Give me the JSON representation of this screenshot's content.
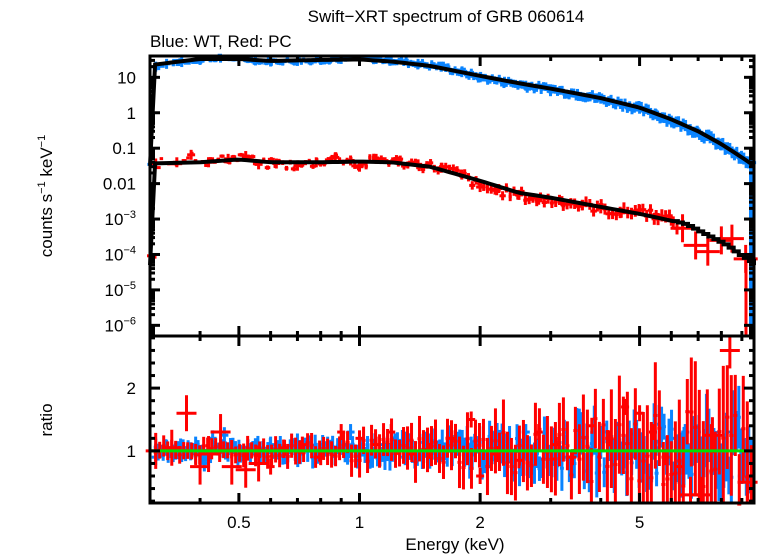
{
  "chart_data": [
    {
      "panel": "spectrum",
      "type": "scatter",
      "title": "Swift−XRT spectrum of GRB 060614",
      "subtitle": "Blue: WT, Red: PC",
      "xlabel": "Energy (keV)",
      "ylabel": "counts s⁻¹ keV⁻¹",
      "xscale": "log",
      "yscale": "log",
      "xlim": [
        0.3,
        9.65
      ],
      "ylim": [
        5e-07,
        40
      ],
      "x_ticks": [
        {
          "value": 0.5,
          "label": "0.5"
        },
        {
          "value": 1,
          "label": "1"
        },
        {
          "value": 2,
          "label": "2"
        },
        {
          "value": 5,
          "label": "5"
        }
      ],
      "y_ticks": [
        {
          "value": 10,
          "base": "10",
          "exp": ""
        },
        {
          "value": 1,
          "base": "1",
          "exp": ""
        },
        {
          "value": 0.1,
          "base": "0.1",
          "exp": ""
        },
        {
          "value": 0.01,
          "base": "0.01",
          "exp": ""
        },
        {
          "value": 0.001,
          "base": "10",
          "exp": "−3"
        },
        {
          "value": 0.0001,
          "base": "10",
          "exp": "−4"
        },
        {
          "value": 1e-05,
          "base": "10",
          "exp": "−5"
        },
        {
          "value": 1e-06,
          "base": "10",
          "exp": "−6"
        }
      ],
      "series": [
        {
          "name": "WT",
          "color": "#0a84ff",
          "style": "errorbars",
          "points": [
            [
              0.31,
              20
            ],
            [
              0.33,
              24
            ],
            [
              0.36,
              27
            ],
            [
              0.4,
              31
            ],
            [
              0.45,
              36
            ],
            [
              0.5,
              33
            ],
            [
              0.55,
              30
            ],
            [
              0.6,
              28
            ],
            [
              0.7,
              29
            ],
            [
              0.8,
              31
            ],
            [
              0.9,
              33
            ],
            [
              1.0,
              34
            ],
            [
              1.1,
              33
            ],
            [
              1.2,
              30
            ],
            [
              1.4,
              24
            ],
            [
              1.6,
              20
            ],
            [
              1.8,
              14
            ],
            [
              2.0,
              10
            ],
            [
              2.3,
              7.5
            ],
            [
              2.6,
              5.8
            ],
            [
              3.0,
              4.6
            ],
            [
              3.5,
              3.4
            ],
            [
              4.0,
              2.5
            ],
            [
              4.5,
              1.8
            ],
            [
              5.0,
              1.3
            ],
            [
              5.5,
              0.9
            ],
            [
              6.0,
              0.6
            ],
            [
              6.5,
              0.42
            ],
            [
              7.0,
              0.28
            ],
            [
              7.5,
              0.19
            ],
            [
              8.0,
              0.12
            ],
            [
              8.5,
              0.08
            ],
            [
              9.0,
              0.05
            ],
            [
              9.5,
              0.035
            ]
          ]
        },
        {
          "name": "PC",
          "color": "#ff0000",
          "style": "errorbars",
          "points": [
            [
              0.31,
              0.037
            ],
            [
              0.35,
              0.04
            ],
            [
              0.38,
              0.065
            ],
            [
              0.42,
              0.04
            ],
            [
              0.47,
              0.05
            ],
            [
              0.52,
              0.06
            ],
            [
              0.56,
              0.035
            ],
            [
              0.62,
              0.037
            ],
            [
              0.7,
              0.032
            ],
            [
              0.78,
              0.04
            ],
            [
              0.87,
              0.055
            ],
            [
              0.95,
              0.045
            ],
            [
              1.0,
              0.03
            ],
            [
              1.1,
              0.05
            ],
            [
              1.25,
              0.042
            ],
            [
              1.4,
              0.035
            ],
            [
              1.6,
              0.028
            ],
            [
              1.8,
              0.018
            ],
            [
              2.0,
              0.008
            ],
            [
              2.2,
              0.0065
            ],
            [
              2.5,
              0.0048
            ],
            [
              2.8,
              0.0035
            ],
            [
              3.2,
              0.0032
            ],
            [
              3.6,
              0.0025
            ],
            [
              4.0,
              0.002
            ],
            [
              4.5,
              0.0015
            ],
            [
              5.0,
              0.0018
            ],
            [
              5.5,
              0.0013
            ],
            [
              6.0,
              0.0009
            ],
            [
              6.4,
              0.00055
            ],
            [
              6.9,
              0.00018
            ],
            [
              7.4,
              0.00012
            ],
            [
              8.0,
              0.00025
            ],
            [
              8.5,
              0.00028
            ],
            [
              9.2,
              7.5e-05
            ]
          ]
        }
      ],
      "models": [
        {
          "name": "WT model",
          "color": "#000000",
          "points": [
            [
              0.3,
              22
            ],
            [
              0.4,
              33
            ],
            [
              0.5,
              33
            ],
            [
              0.6,
              29
            ],
            [
              0.8,
              31
            ],
            [
              1.0,
              32
            ],
            [
              1.2,
              28
            ],
            [
              1.5,
              21
            ],
            [
              2.0,
              11
            ],
            [
              2.5,
              6.8
            ],
            [
              3.0,
              4.8
            ],
            [
              4.0,
              2.6
            ],
            [
              5.0,
              1.4
            ],
            [
              6.0,
              0.65
            ],
            [
              7.0,
              0.3
            ],
            [
              8.0,
              0.13
            ],
            [
              9.0,
              0.055
            ],
            [
              9.65,
              0.032
            ]
          ]
        },
        {
          "name": "PC model",
          "color": "#000000",
          "points": [
            [
              0.3,
              0.037
            ],
            [
              0.4,
              0.04
            ],
            [
              0.5,
              0.048
            ],
            [
              0.6,
              0.04
            ],
            [
              0.8,
              0.04
            ],
            [
              1.0,
              0.042
            ],
            [
              1.2,
              0.04
            ],
            [
              1.5,
              0.03
            ],
            [
              2.0,
              0.012
            ],
            [
              2.5,
              0.0055
            ],
            [
              3.0,
              0.004
            ],
            [
              4.0,
              0.0022
            ],
            [
              5.0,
              0.0014
            ],
            [
              6.0,
              0.0009
            ],
            [
              6.5,
              0.0007
            ],
            [
              7.0,
              0.00045
            ],
            [
              7.6,
              0.00028
            ],
            [
              8.2,
              0.00018
            ],
            [
              8.8,
              0.0001
            ],
            [
              9.3,
              7e-05
            ],
            [
              9.65,
              5e-05
            ]
          ]
        }
      ]
    },
    {
      "panel": "ratio",
      "type": "scatter",
      "xlabel": "Energy (keV)",
      "ylabel": "ratio",
      "xscale": "log",
      "yscale": "linear",
      "xlim": [
        0.3,
        9.65
      ],
      "ylim": [
        0.17,
        2.83
      ],
      "reference_line": {
        "value": 1,
        "color": "#00e000"
      },
      "y_ticks": [
        {
          "value": 1,
          "label": "1"
        },
        {
          "value": 2,
          "label": "2"
        }
      ],
      "series": [
        {
          "name": "WT",
          "color": "#0a84ff",
          "points": [
            [
              0.31,
              0.9
            ],
            [
              0.33,
              1.05
            ],
            [
              0.36,
              0.95
            ],
            [
              0.39,
              1.1
            ],
            [
              0.41,
              0.8
            ],
            [
              0.43,
              1.2
            ],
            [
              0.46,
              1.25
            ],
            [
              0.5,
              1.05
            ],
            [
              0.55,
              0.95
            ],
            [
              0.6,
              1.1
            ],
            [
              0.65,
              0.92
            ],
            [
              0.7,
              1.15
            ],
            [
              0.78,
              1.0
            ],
            [
              0.85,
              1.05
            ],
            [
              0.95,
              1.3
            ],
            [
              1.05,
              0.95
            ],
            [
              1.15,
              1.1
            ],
            [
              1.3,
              0.9
            ],
            [
              1.5,
              1.15
            ],
            [
              1.7,
              1.0
            ],
            [
              1.9,
              1.1
            ],
            [
              2.1,
              0.85
            ],
            [
              2.3,
              1.15
            ],
            [
              2.6,
              1.3
            ],
            [
              2.9,
              1.0
            ],
            [
              3.2,
              0.9
            ],
            [
              3.6,
              1.2
            ],
            [
              4.0,
              1.0
            ],
            [
              4.5,
              0.9
            ],
            [
              5.0,
              1.1
            ],
            [
              5.5,
              1.05
            ],
            [
              6.0,
              1.2
            ],
            [
              6.5,
              1.3
            ],
            [
              7.0,
              1.1
            ],
            [
              7.5,
              0.95
            ],
            [
              8.0,
              0.8
            ],
            [
              8.5,
              1.3
            ],
            [
              9.0,
              0.6
            ],
            [
              9.4,
              0.45
            ]
          ]
        },
        {
          "name": "PC",
          "color": "#ff0000",
          "points": [
            [
              0.31,
              1.0
            ],
            [
              0.34,
              1.05
            ],
            [
              0.37,
              1.6
            ],
            [
              0.4,
              0.75
            ],
            [
              0.42,
              0.95
            ],
            [
              0.45,
              1.3
            ],
            [
              0.48,
              0.75
            ],
            [
              0.52,
              0.7
            ],
            [
              0.56,
              0.8
            ],
            [
              0.6,
              0.75
            ],
            [
              0.65,
              1.05
            ],
            [
              0.72,
              1.1
            ],
            [
              0.8,
              0.9
            ],
            [
              0.9,
              1.3
            ],
            [
              1.0,
              1.2
            ],
            [
              1.1,
              1.1
            ],
            [
              1.2,
              1.3
            ],
            [
              1.35,
              0.95
            ],
            [
              1.5,
              1.0
            ],
            [
              1.7,
              1.2
            ],
            [
              1.9,
              1.5
            ],
            [
              2.0,
              0.6
            ],
            [
              2.2,
              0.95
            ],
            [
              2.5,
              0.85
            ],
            [
              2.8,
              1.3
            ],
            [
              3.1,
              1.1
            ],
            [
              3.4,
              0.9
            ],
            [
              3.8,
              1.4
            ],
            [
              4.2,
              1.2
            ],
            [
              4.6,
              1.7
            ],
            [
              5.0,
              1.6
            ],
            [
              5.4,
              1.3
            ],
            [
              5.8,
              0.9
            ],
            [
              6.3,
              0.75
            ],
            [
              6.7,
              0.3
            ],
            [
              7.1,
              0.3
            ],
            [
              7.6,
              1.25
            ],
            [
              8.4,
              2.6
            ],
            [
              9.3,
              0.5
            ]
          ]
        }
      ]
    }
  ]
}
